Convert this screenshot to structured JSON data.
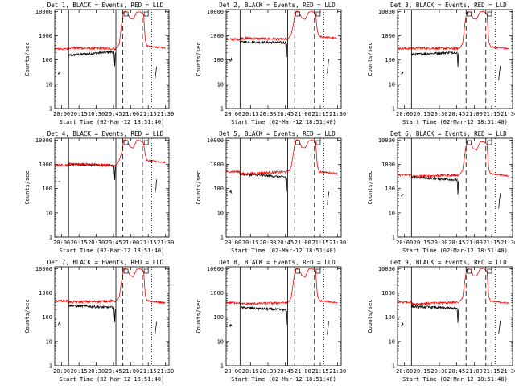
{
  "figure": {
    "ylabel": "Counts/sec",
    "xlabel": "Start Time (02-Mar-12 18:51:40)",
    "legend_text": "BLACK = Events, RED = LLD"
  },
  "chart_data": [
    {
      "type": "line",
      "title": "Det 1, BLACK = Events, RED = LLD",
      "xlabel": "Start Time (02-Mar-12 18:51:40)",
      "ylabel": "Counts/sec",
      "x_ticks": [
        "20:00",
        "20:15",
        "20:30",
        "20:45",
        "21:00",
        "21:15",
        "21:30"
      ],
      "y_ticks": [
        "1",
        "10",
        "100",
        "1000",
        "10000"
      ],
      "yscale": "log",
      "ylim": [
        1,
        12000
      ],
      "series": [
        {
          "name": "Events",
          "color": "#000000",
          "base": 220,
          "start": 155,
          "end": 310
        },
        {
          "name": "LLD",
          "color": "#ff0000",
          "base": 290,
          "start": 320,
          "end": 310,
          "peak": 9500
        }
      ],
      "markers": {
        "solid": [
          "20:06",
          "20:47"
        ],
        "dashed": [
          "20:53",
          "21:10"
        ],
        "dotted": [
          "21:18"
        ]
      }
    },
    {
      "type": "line",
      "title": "Det 2, BLACK = Events, RED = LLD",
      "xlabel": "Start Time (02-Mar-12 18:51:40)",
      "ylabel": "Counts/sec",
      "x_ticks": [
        "20:00",
        "20:15",
        "20:30",
        "20:45",
        "21:00",
        "21:15",
        "21:30"
      ],
      "y_ticks": [
        "1",
        "10",
        "100",
        "1000",
        "10000"
      ],
      "yscale": "log",
      "ylim": [
        1,
        12000
      ],
      "series": [
        {
          "name": "Events",
          "color": "#000000",
          "base": 520,
          "start": 560,
          "end": 640
        },
        {
          "name": "LLD",
          "color": "#ff0000",
          "base": 720,
          "start": 800,
          "end": 780,
          "peak": 9500
        }
      ],
      "markers": {
        "solid": [
          "20:06",
          "20:47"
        ],
        "dashed": [
          "20:53",
          "21:10"
        ],
        "dotted": [
          "21:18"
        ]
      }
    },
    {
      "type": "line",
      "title": "Det 3, BLACK = Events, RED = LLD",
      "xlabel": "Start Time (02-Mar-12 18:51:40)",
      "ylabel": "Counts/sec",
      "x_ticks": [
        "20:00",
        "20:15",
        "20:30",
        "20:45",
        "21:00",
        "21:15",
        "21:30"
      ],
      "y_ticks": [
        "1",
        "10",
        "100",
        "1000",
        "10000"
      ],
      "yscale": "log",
      "ylim": [
        1,
        12000
      ],
      "series": [
        {
          "name": "Events",
          "color": "#000000",
          "base": 210,
          "start": 170,
          "end": 300
        },
        {
          "name": "LLD",
          "color": "#ff0000",
          "base": 300,
          "start": 310,
          "end": 290,
          "peak": 9500
        }
      ],
      "markers": {
        "solid": [
          "20:06",
          "20:47"
        ],
        "dashed": [
          "20:53",
          "21:10"
        ],
        "dotted": [
          "21:18"
        ]
      }
    },
    {
      "type": "line",
      "title": "Det 4, BLACK = Events, RED = LLD",
      "xlabel": "Start Time (02-Mar-12 18:51:40)",
      "ylabel": "Counts/sec",
      "x_ticks": [
        "20:00",
        "20:15",
        "20:30",
        "20:45",
        "21:00",
        "21:15",
        "21:30"
      ],
      "y_ticks": [
        "1",
        "10",
        "100",
        "1000",
        "10000"
      ],
      "yscale": "log",
      "ylim": [
        1,
        12000
      ],
      "series": [
        {
          "name": "Events",
          "color": "#000000",
          "base": 900,
          "start": 1000,
          "end": 1200
        },
        {
          "name": "LLD",
          "color": "#ff0000",
          "base": 930,
          "start": 1050,
          "end": 1200,
          "peak": 9500
        }
      ],
      "markers": {
        "solid": [
          "20:06",
          "20:47"
        ],
        "dashed": [
          "20:53",
          "21:10"
        ],
        "dotted": [
          "21:18"
        ]
      }
    },
    {
      "type": "line",
      "title": "Det 5, BLACK = Events, RED = LLD",
      "xlabel": "Start Time (02-Mar-12 18:51:40)",
      "ylabel": "Counts/sec",
      "x_ticks": [
        "20:00",
        "20:15",
        "20:30",
        "20:45",
        "21:00",
        "21:15",
        "21:30"
      ],
      "y_ticks": [
        "1",
        "10",
        "100",
        "1000",
        "10000"
      ],
      "yscale": "log",
      "ylim": [
        1,
        12000
      ],
      "series": [
        {
          "name": "Events",
          "color": "#000000",
          "base": 300,
          "start": 400,
          "end": 430
        },
        {
          "name": "LLD",
          "color": "#ff0000",
          "base": 500,
          "start": 400,
          "end": 420,
          "peak": 9500
        }
      ],
      "markers": {
        "solid": [
          "20:06",
          "20:47"
        ],
        "dashed": [
          "20:53",
          "21:10"
        ],
        "dotted": [
          "21:18"
        ]
      }
    },
    {
      "type": "line",
      "title": "Det 6, BLACK = Events, RED = LLD",
      "xlabel": "Start Time (02-Mar-12 18:51:40)",
      "ylabel": "Counts/sec",
      "x_ticks": [
        "20:00",
        "20:15",
        "20:30",
        "20:45",
        "21:00",
        "21:15",
        "21:30"
      ],
      "y_ticks": [
        "1",
        "10",
        "100",
        "1000",
        "10000"
      ],
      "yscale": "log",
      "ylim": [
        1,
        12000
      ],
      "series": [
        {
          "name": "Events",
          "color": "#000000",
          "base": 230,
          "start": 300,
          "end": 330
        },
        {
          "name": "LLD",
          "color": "#ff0000",
          "base": 370,
          "start": 320,
          "end": 340,
          "peak": 8000
        }
      ],
      "markers": {
        "solid": [
          "20:06",
          "20:47"
        ],
        "dashed": [
          "20:53",
          "21:10"
        ],
        "dotted": [
          "21:18"
        ]
      }
    },
    {
      "type": "line",
      "title": "Det 7, BLACK = Events, RED = LLD",
      "xlabel": "Start Time (02-Mar-12 18:51:40)",
      "ylabel": "Counts/sec",
      "x_ticks": [
        "20:00",
        "20:15",
        "20:30",
        "20:45",
        "21:00",
        "21:15",
        "21:30"
      ],
      "y_ticks": [
        "1",
        "10",
        "100",
        "1000",
        "10000"
      ],
      "yscale": "log",
      "ylim": [
        1,
        12000
      ],
      "series": [
        {
          "name": "Events",
          "color": "#000000",
          "base": 250,
          "start": 300,
          "end": 390
        },
        {
          "name": "LLD",
          "color": "#ff0000",
          "base": 470,
          "start": 420,
          "end": 390,
          "peak": 9500
        }
      ],
      "markers": {
        "solid": [
          "20:06",
          "20:47"
        ],
        "dashed": [
          "20:53",
          "21:10"
        ],
        "dotted": [
          "21:18"
        ]
      }
    },
    {
      "type": "line",
      "title": "Det 8, BLACK = Events, RED = LLD",
      "xlabel": "Start Time (02-Mar-12 18:51:40)",
      "ylabel": "Counts/sec",
      "x_ticks": [
        "20:00",
        "20:15",
        "20:30",
        "20:45",
        "21:00",
        "21:15",
        "21:30"
      ],
      "y_ticks": [
        "1",
        "10",
        "100",
        "1000",
        "10000"
      ],
      "yscale": "log",
      "ylim": [
        1,
        12000
      ],
      "series": [
        {
          "name": "Events",
          "color": "#000000",
          "base": 200,
          "start": 250,
          "end": 400
        },
        {
          "name": "LLD",
          "color": "#ff0000",
          "base": 400,
          "start": 350,
          "end": 400,
          "peak": 9500
        }
      ],
      "markers": {
        "solid": [
          "20:06",
          "20:47"
        ],
        "dashed": [
          "20:53",
          "21:10"
        ],
        "dotted": [
          "21:18"
        ]
      }
    },
    {
      "type": "line",
      "title": "Det 9, BLACK = Events, RED = LLD",
      "xlabel": "Start Time (02-Mar-12 18:51:40)",
      "ylabel": "Counts/sec",
      "x_ticks": [
        "20:00",
        "20:15",
        "20:30",
        "20:45",
        "21:00",
        "21:15",
        "21:30"
      ],
      "y_ticks": [
        "1",
        "10",
        "100",
        "1000",
        "10000"
      ],
      "yscale": "log",
      "ylim": [
        1,
        12000
      ],
      "series": [
        {
          "name": "Events",
          "color": "#000000",
          "base": 230,
          "start": 280,
          "end": 380
        },
        {
          "name": "LLD",
          "color": "#ff0000",
          "base": 420,
          "start": 350,
          "end": 380,
          "peak": 9500
        }
      ],
      "markers": {
        "solid": [
          "20:06",
          "20:47"
        ],
        "dashed": [
          "20:53",
          "21:10"
        ],
        "dotted": [
          "21:18"
        ]
      }
    }
  ]
}
